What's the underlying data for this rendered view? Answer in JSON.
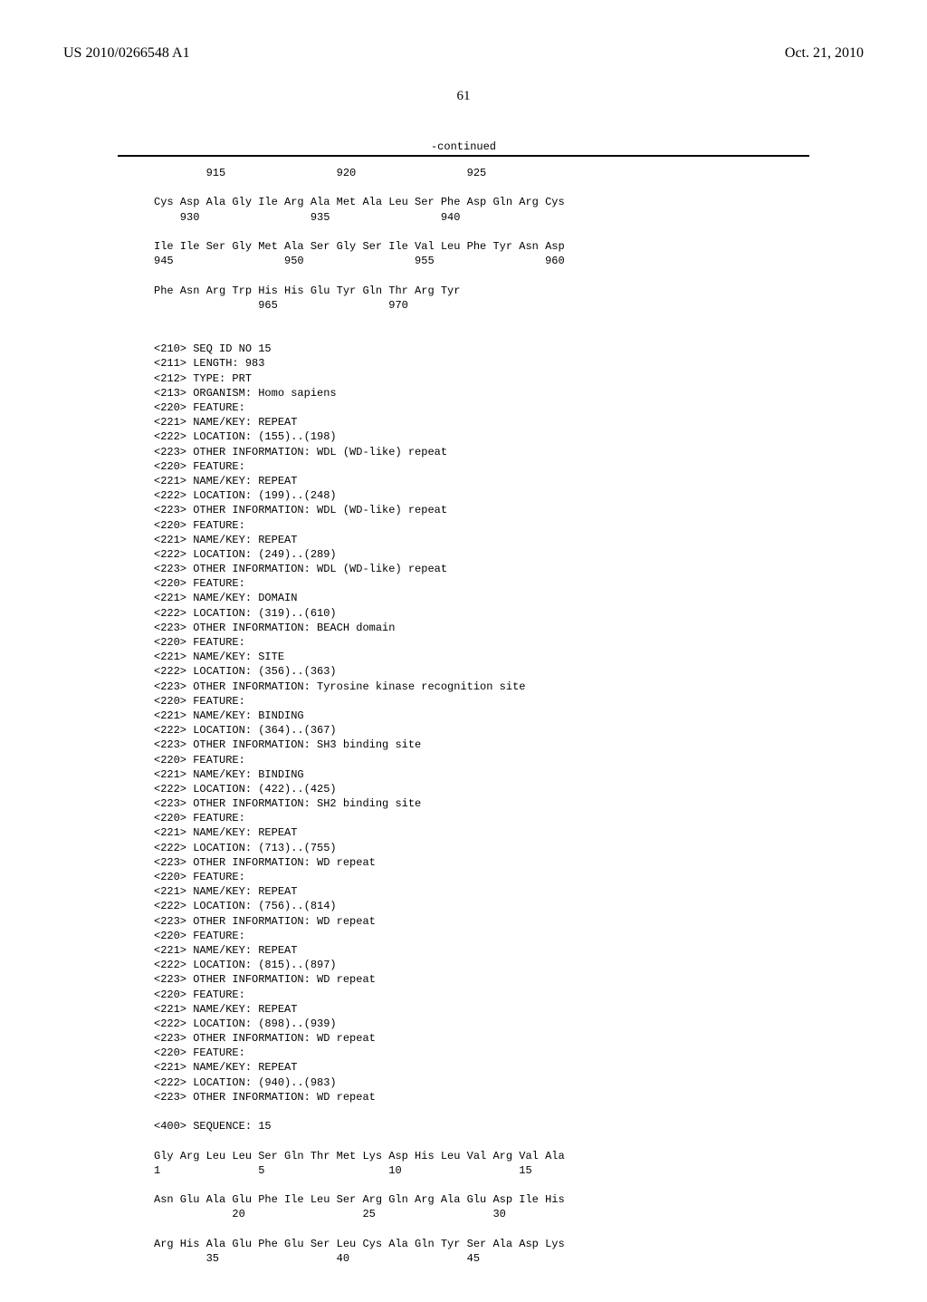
{
  "header": {
    "publication_number": "US 2010/0266548 A1",
    "date": "Oct. 21, 2010"
  },
  "page_number": "61",
  "continued_label": "-continued",
  "seq_lines": [
    "        915                 920                 925",
    "",
    "Cys Asp Ala Gly Ile Arg Ala Met Ala Leu Ser Phe Asp Gln Arg Cys",
    "    930                 935                 940",
    "",
    "Ile Ile Ser Gly Met Ala Ser Gly Ser Ile Val Leu Phe Tyr Asn Asp",
    "945                 950                 955                 960",
    "",
    "Phe Asn Arg Trp His His Glu Tyr Gln Thr Arg Tyr",
    "                965                 970",
    "",
    "",
    "<210> SEQ ID NO 15",
    "<211> LENGTH: 983",
    "<212> TYPE: PRT",
    "<213> ORGANISM: Homo sapiens",
    "<220> FEATURE:",
    "<221> NAME/KEY: REPEAT",
    "<222> LOCATION: (155)..(198)",
    "<223> OTHER INFORMATION: WDL (WD-like) repeat",
    "<220> FEATURE:",
    "<221> NAME/KEY: REPEAT",
    "<222> LOCATION: (199)..(248)",
    "<223> OTHER INFORMATION: WDL (WD-like) repeat",
    "<220> FEATURE:",
    "<221> NAME/KEY: REPEAT",
    "<222> LOCATION: (249)..(289)",
    "<223> OTHER INFORMATION: WDL (WD-like) repeat",
    "<220> FEATURE:",
    "<221> NAME/KEY: DOMAIN",
    "<222> LOCATION: (319)..(610)",
    "<223> OTHER INFORMATION: BEACH domain",
    "<220> FEATURE:",
    "<221> NAME/KEY: SITE",
    "<222> LOCATION: (356)..(363)",
    "<223> OTHER INFORMATION: Tyrosine kinase recognition site",
    "<220> FEATURE:",
    "<221> NAME/KEY: BINDING",
    "<222> LOCATION: (364)..(367)",
    "<223> OTHER INFORMATION: SH3 binding site",
    "<220> FEATURE:",
    "<221> NAME/KEY: BINDING",
    "<222> LOCATION: (422)..(425)",
    "<223> OTHER INFORMATION: SH2 binding site",
    "<220> FEATURE:",
    "<221> NAME/KEY: REPEAT",
    "<222> LOCATION: (713)..(755)",
    "<223> OTHER INFORMATION: WD repeat",
    "<220> FEATURE:",
    "<221> NAME/KEY: REPEAT",
    "<222> LOCATION: (756)..(814)",
    "<223> OTHER INFORMATION: WD repeat",
    "<220> FEATURE:",
    "<221> NAME/KEY: REPEAT",
    "<222> LOCATION: (815)..(897)",
    "<223> OTHER INFORMATION: WD repeat",
    "<220> FEATURE:",
    "<221> NAME/KEY: REPEAT",
    "<222> LOCATION: (898)..(939)",
    "<223> OTHER INFORMATION: WD repeat",
    "<220> FEATURE:",
    "<221> NAME/KEY: REPEAT",
    "<222> LOCATION: (940)..(983)",
    "<223> OTHER INFORMATION: WD repeat",
    "",
    "<400> SEQUENCE: 15",
    "",
    "Gly Arg Leu Leu Ser Gln Thr Met Lys Asp His Leu Val Arg Val Ala",
    "1               5                   10                  15",
    "",
    "Asn Glu Ala Glu Phe Ile Leu Ser Arg Gln Arg Ala Glu Asp Ile His",
    "            20                  25                  30",
    "",
    "Arg His Ala Glu Phe Glu Ser Leu Cys Ala Gln Tyr Ser Ala Asp Lys",
    "        35                  40                  45"
  ]
}
